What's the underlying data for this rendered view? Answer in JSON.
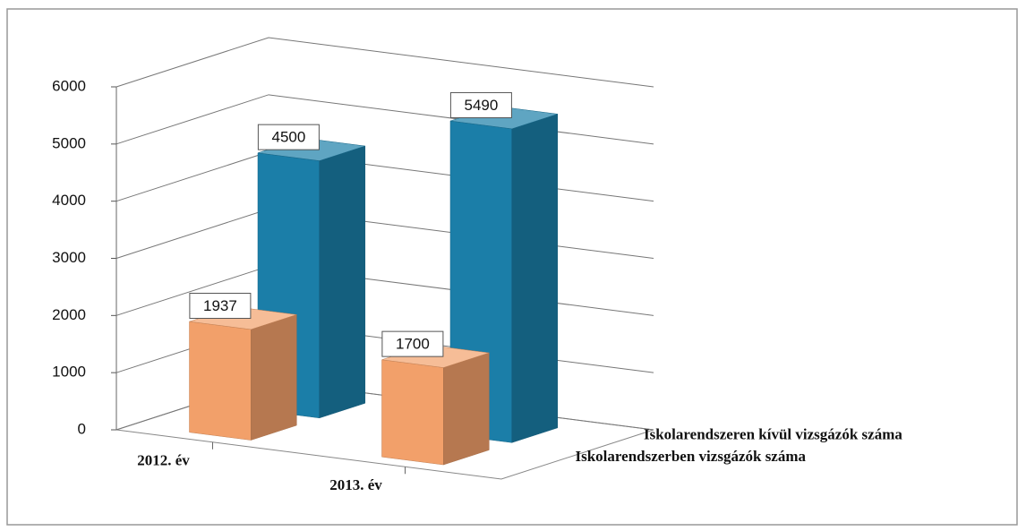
{
  "chart_data": {
    "type": "bar3d",
    "categories": [
      "2012. év",
      "2013. év"
    ],
    "series": [
      {
        "name": "Iskolarendszerben vizsgázók száma",
        "color": "#f2a06a",
        "values": [
          1937,
          1700
        ]
      },
      {
        "name": "Iskolarendszeren kívül vizsgázók száma",
        "color": "#1b7ea8",
        "values": [
          4500,
          5490
        ]
      }
    ],
    "ylim": [
      0,
      6000
    ],
    "yticks": [
      0,
      1000,
      2000,
      3000,
      4000,
      5000,
      6000
    ],
    "grid": true
  }
}
